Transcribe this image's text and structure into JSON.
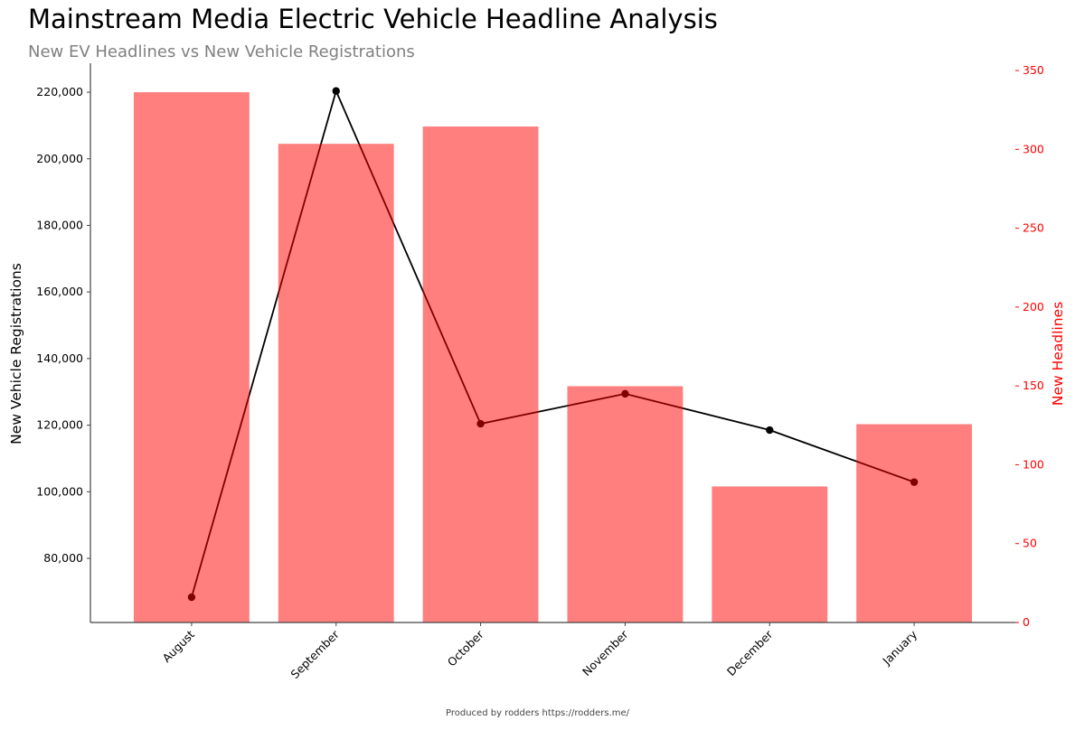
{
  "title": "Mainstream Media Electric Vehicle Headline Analysis",
  "subtitle": "New EV Headlines vs New Vehicle Registrations",
  "footer": "Produced by rodders https://rodders.me/",
  "colors": {
    "bars": "#ff0000",
    "line": "#000000",
    "right_axis": "#ff0000"
  },
  "chart_data": {
    "type": "bar+line",
    "categories": [
      "August",
      "September",
      "October",
      "November",
      "December",
      "January"
    ],
    "series": [
      {
        "name": "New Vehicle Registrations",
        "type": "bar",
        "axis": "left",
        "values": [
          220000,
          204500,
          209700,
          131700,
          101600,
          120300
        ]
      },
      {
        "name": "New Headlines",
        "type": "line",
        "axis": "right",
        "values": [
          16,
          337,
          126,
          145,
          122,
          89
        ]
      }
    ],
    "ylabel": "New Vehicle Registrations",
    "ylabel_right": "New Headlines",
    "ylim": [
      60740,
      228700
    ],
    "ylim_right": [
      0,
      354.6
    ],
    "yticks": [
      80000,
      100000,
      120000,
      140000,
      160000,
      180000,
      200000,
      220000
    ],
    "ytick_labels": [
      "80,000",
      "100,000",
      "120,000",
      "140,000",
      "160,000",
      "180,000",
      "200,000",
      "220,000"
    ],
    "yticks_right": [
      0,
      50,
      100,
      150,
      200,
      250,
      300,
      350
    ],
    "grid": false
  }
}
